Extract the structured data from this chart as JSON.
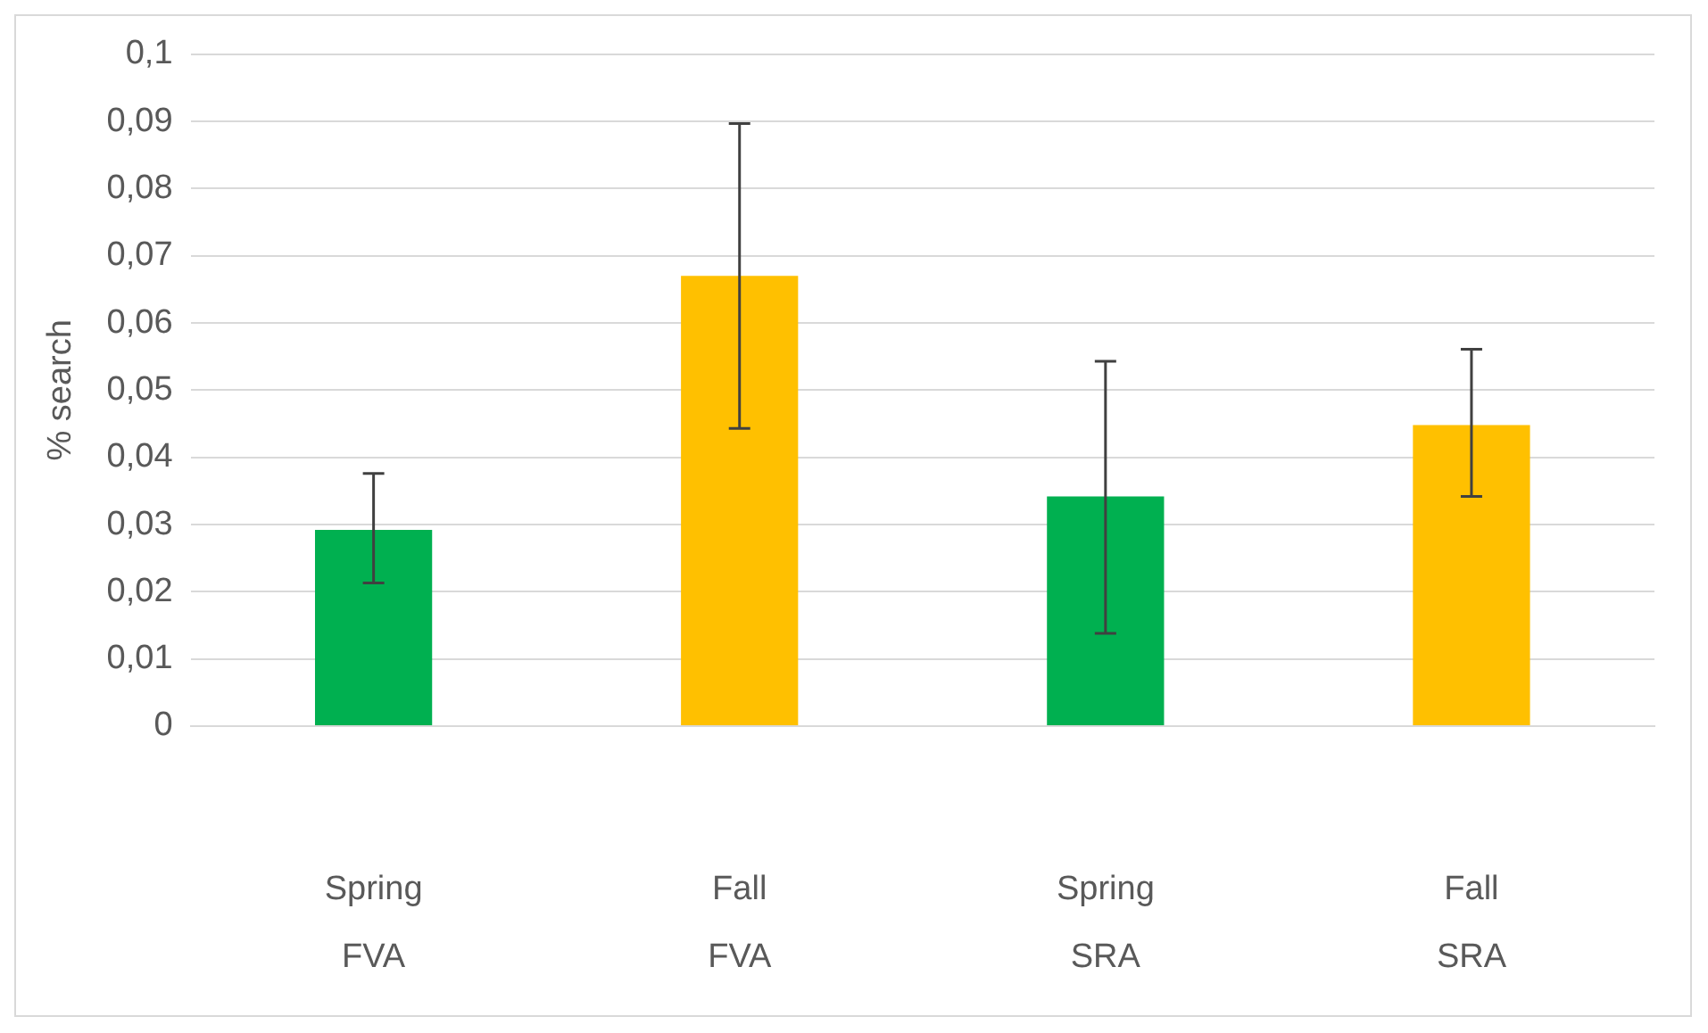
{
  "chart_data": {
    "type": "bar",
    "ylabel": "% search",
    "categories": [
      "Spring\nFVA",
      "Fall\nFVA",
      "Spring\nSRA",
      "Fall\nSRA"
    ],
    "values": [
      0.0292,
      0.067,
      0.0342,
      0.0448
    ],
    "colors": [
      "#00b050",
      "#ffc000",
      "#00b050",
      "#ffc000"
    ],
    "errors": [
      [
        0.0213,
        0.0376
      ],
      [
        0.0443,
        0.0897
      ],
      [
        0.0138,
        0.0543
      ],
      [
        0.0342,
        0.0561
      ]
    ],
    "ylim": [
      0,
      0.1
    ],
    "yticks": [
      {
        "value": 0,
        "label": "0"
      },
      {
        "value": 0.01,
        "label": "0,01"
      },
      {
        "value": 0.02,
        "label": "0,02"
      },
      {
        "value": 0.03,
        "label": "0,03"
      },
      {
        "value": 0.04,
        "label": "0,04"
      },
      {
        "value": 0.05,
        "label": "0,05"
      },
      {
        "value": 0.06,
        "label": "0,06"
      },
      {
        "value": 0.07,
        "label": "0,07"
      },
      {
        "value": 0.08,
        "label": "0,08"
      },
      {
        "value": 0.09,
        "label": "0,09"
      },
      {
        "value": 0.1,
        "label": "0,1"
      }
    ],
    "grid": "y"
  }
}
